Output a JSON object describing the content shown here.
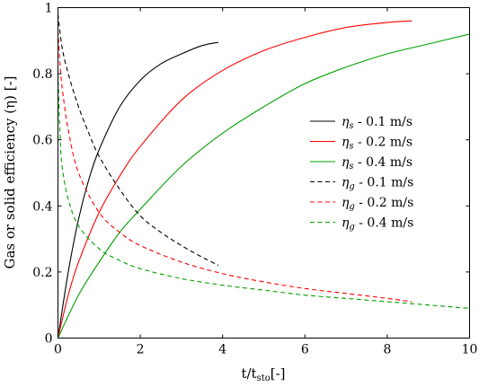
{
  "chart_data": {
    "type": "line",
    "xlabel": "t/t_sto[-]",
    "xlabel_main": "t/t",
    "xlabel_sub": "sto",
    "xlabel_suffix": "[-]",
    "ylabel": "Gas or solid efficiency (η) [-]",
    "xlim": [
      0,
      10
    ],
    "ylim": [
      0,
      1
    ],
    "xticks": [
      0,
      2,
      4,
      6,
      8,
      10
    ],
    "yticks": [
      0,
      0.2,
      0.4,
      0.6,
      0.8,
      1
    ],
    "xtick_labels": [
      "0",
      "2",
      "4",
      "6",
      "8",
      "10"
    ],
    "ytick_labels": [
      "0",
      "0.2",
      "0.4",
      "0.6",
      "0.8",
      "1"
    ],
    "grid": false,
    "legend_position": "center-right",
    "series": [
      {
        "name": "ηs - 0.1 m/s",
        "symbol": "η",
        "sub": "s",
        "text": " - 0.1 m/s",
        "color": "#000000",
        "dash": "solid",
        "x": [
          0,
          0.25,
          0.5,
          0.75,
          1.0,
          1.5,
          2.0,
          2.5,
          3.0,
          3.5,
          3.9
        ],
        "y": [
          0,
          0.2,
          0.36,
          0.48,
          0.57,
          0.7,
          0.78,
          0.83,
          0.86,
          0.885,
          0.895
        ]
      },
      {
        "name": "ηs - 0.2 m/s",
        "symbol": "η",
        "sub": "s",
        "text": " - 0.2 m/s",
        "color": "#ff0000",
        "dash": "solid",
        "x": [
          0,
          0.25,
          0.5,
          1.0,
          1.5,
          2.0,
          3.0,
          4.0,
          5.0,
          6.0,
          7.0,
          8.0,
          8.6
        ],
        "y": [
          0,
          0.13,
          0.23,
          0.38,
          0.49,
          0.58,
          0.72,
          0.81,
          0.87,
          0.91,
          0.94,
          0.955,
          0.96
        ]
      },
      {
        "name": "ηs - 0.4 m/s",
        "symbol": "η",
        "sub": "s",
        "text": " - 0.4 m/s",
        "color": "#00a000",
        "dash": "solid",
        "x": [
          0,
          0.5,
          1.0,
          1.5,
          2.0,
          3.0,
          4.0,
          5.0,
          6.0,
          7.0,
          8.0,
          9.0,
          10.0
        ],
        "y": [
          0,
          0.13,
          0.23,
          0.32,
          0.39,
          0.52,
          0.62,
          0.7,
          0.77,
          0.82,
          0.86,
          0.89,
          0.92
        ]
      },
      {
        "name": "ηg - 0.1 m/s",
        "symbol": "η",
        "sub": "g",
        "text": " - 0.1 m/s",
        "color": "#000000",
        "dash": "dashed",
        "x": [
          0,
          0.1,
          0.25,
          0.5,
          0.75,
          1.0,
          1.5,
          2.0,
          2.5,
          3.0,
          3.5,
          3.9
        ],
        "y": [
          0.98,
          0.88,
          0.8,
          0.7,
          0.62,
          0.55,
          0.45,
          0.37,
          0.32,
          0.28,
          0.245,
          0.22
        ]
      },
      {
        "name": "ηg - 0.2 m/s",
        "symbol": "η",
        "sub": "g",
        "text": " - 0.2 m/s",
        "color": "#ff0000",
        "dash": "dashed",
        "x": [
          0,
          0.05,
          0.1,
          0.25,
          0.5,
          1.0,
          1.5,
          2.0,
          3.0,
          4.0,
          5.0,
          6.0,
          7.0,
          8.0,
          8.6
        ],
        "y": [
          0.93,
          0.83,
          0.76,
          0.63,
          0.5,
          0.38,
          0.32,
          0.28,
          0.23,
          0.195,
          0.17,
          0.15,
          0.135,
          0.12,
          0.11
        ]
      },
      {
        "name": "ηg - 0.4 m/s",
        "symbol": "η",
        "sub": "g",
        "text": " - 0.4 m/s",
        "color": "#00a000",
        "dash": "dashed",
        "x": [
          0,
          0.05,
          0.1,
          0.25,
          0.5,
          1.0,
          1.5,
          2.0,
          3.0,
          4.0,
          5.0,
          6.0,
          7.0,
          8.0,
          9.0,
          10.0
        ],
        "y": [
          0.8,
          0.62,
          0.52,
          0.42,
          0.34,
          0.27,
          0.235,
          0.21,
          0.18,
          0.16,
          0.145,
          0.13,
          0.12,
          0.11,
          0.1,
          0.09
        ]
      }
    ]
  }
}
